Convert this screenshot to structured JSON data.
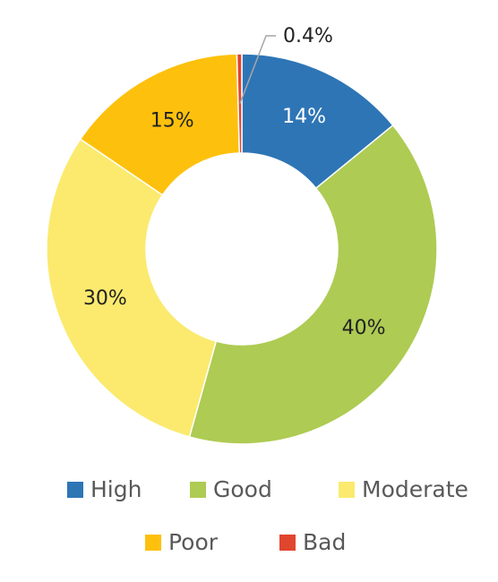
{
  "chart_data": {
    "type": "pie",
    "categories": [
      "High",
      "Good",
      "Moderate",
      "Poor",
      "Bad"
    ],
    "values": [
      14,
      40,
      30,
      15,
      0.4
    ],
    "value_labels": [
      "14%",
      "40%",
      "30%",
      "15%",
      "0.4%"
    ],
    "colors": [
      "#2e75b6",
      "#aecb53",
      "#fbea6e",
      "#fdc10d",
      "#e0452e"
    ],
    "legend": "bottom"
  }
}
